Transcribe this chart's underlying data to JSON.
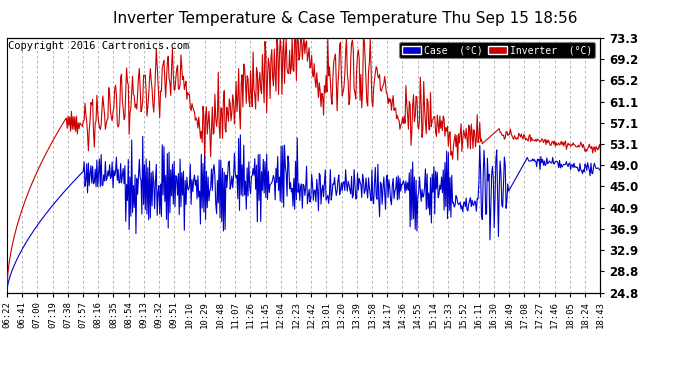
{
  "title": "Inverter Temperature & Case Temperature Thu Sep 15 18:56",
  "copyright": "Copyright 2016 Cartronics.com",
  "ylabel_right_ticks": [
    24.8,
    28.8,
    32.9,
    36.9,
    40.9,
    45.0,
    49.0,
    53.1,
    57.1,
    61.1,
    65.2,
    69.2,
    73.3
  ],
  "ylim": [
    24.8,
    73.3
  ],
  "legend_labels": [
    "Case  (°C)",
    "Inverter  (°C)"
  ],
  "legend_colors": [
    "#0000cc",
    "#cc0000"
  ],
  "xtick_labels": [
    "06:22",
    "06:41",
    "07:00",
    "07:19",
    "07:38",
    "07:57",
    "08:16",
    "08:35",
    "08:54",
    "09:13",
    "09:32",
    "09:51",
    "10:10",
    "10:29",
    "10:48",
    "11:07",
    "11:26",
    "11:45",
    "12:04",
    "12:23",
    "12:42",
    "13:01",
    "13:20",
    "13:39",
    "13:58",
    "14:17",
    "14:36",
    "14:55",
    "15:14",
    "15:33",
    "15:52",
    "16:11",
    "16:30",
    "16:49",
    "17:08",
    "17:27",
    "17:46",
    "18:05",
    "18:24",
    "18:43"
  ],
  "background_color": "#ffffff",
  "grid_color": "#aaaaaa",
  "red_color": "#cc0000",
  "blue_color": "#0000cc",
  "title_fontsize": 11,
  "copyright_fontsize": 7.5
}
